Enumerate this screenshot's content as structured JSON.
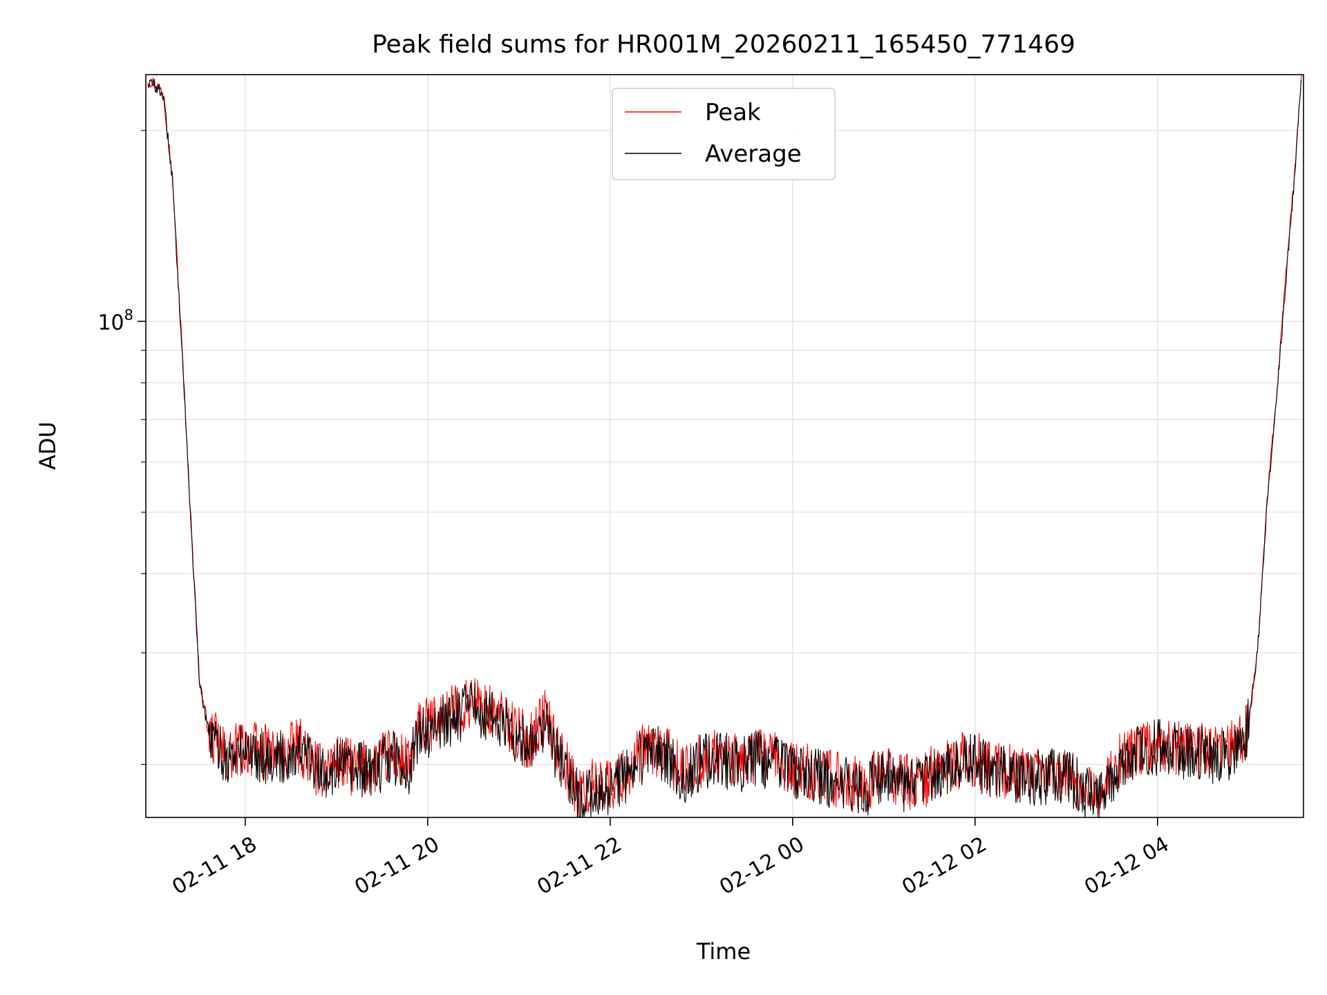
{
  "chart_data": {
    "type": "line",
    "title": "Peak field sums for HR001M_20260211_165450_771469",
    "xlabel": "Time",
    "ylabel": "ADU",
    "yscale": "log",
    "grid": true,
    "legend_position": "top-center",
    "xlim_hours": [
      16.91,
      29.6
    ],
    "ylim": [
      16500000.0,
      245000000.0
    ],
    "xticks": [
      {
        "hour": 18,
        "label": "02-11 18"
      },
      {
        "hour": 20,
        "label": "02-11 20"
      },
      {
        "hour": 22,
        "label": "02-11 22"
      },
      {
        "hour": 24,
        "label": "02-12 00"
      },
      {
        "hour": 26,
        "label": "02-12 02"
      },
      {
        "hour": 28,
        "label": "02-12 04"
      }
    ],
    "yticks": [
      {
        "value": 100000000,
        "base": "10",
        "exp": "8"
      }
    ],
    "yminor": [
      20000000,
      30000000,
      40000000,
      50000000,
      60000000,
      70000000,
      80000000,
      90000000,
      200000000
    ],
    "series": [
      {
        "name": "Peak",
        "color": "#ff0000",
        "x": [
          16.93,
          17.0,
          17.1,
          17.2,
          17.3,
          17.4,
          17.5,
          17.6,
          17.7,
          17.8,
          17.9,
          18.0,
          18.2,
          18.4,
          18.6,
          18.8,
          19.0,
          19.2,
          19.4,
          19.6,
          19.8,
          19.9,
          20.0,
          20.2,
          20.4,
          20.5,
          20.6,
          20.8,
          21.0,
          21.1,
          21.2,
          21.3,
          21.4,
          21.5,
          21.6,
          21.7,
          21.8,
          21.9,
          22.0,
          22.2,
          22.4,
          22.6,
          22.8,
          23.0,
          23.2,
          23.4,
          23.6,
          23.8,
          24.0,
          24.2,
          24.4,
          24.6,
          24.8,
          25.0,
          25.2,
          25.4,
          25.6,
          25.8,
          26.0,
          26.2,
          26.4,
          26.6,
          26.8,
          27.0,
          27.2,
          27.4,
          27.6,
          27.8,
          28.0,
          28.2,
          28.4,
          28.6,
          28.8,
          28.9,
          29.0,
          29.1,
          29.2,
          29.3,
          29.4,
          29.5,
          29.58
        ],
        "y": [
          240000000,
          238000000,
          230000000,
          170000000,
          95000000,
          50000000,
          27000000,
          22500000,
          21500000,
          20500000,
          21000000,
          21300000,
          20900000,
          20600000,
          21400000,
          19500000,
          20200000,
          19700000,
          19800000,
          20800000,
          19800000,
          22800000,
          23000000,
          23800000,
          24500000,
          25400000,
          24300000,
          23800000,
          22300000,
          21700000,
          22800000,
          24000000,
          21200000,
          20200000,
          18400000,
          17900000,
          18400000,
          18800000,
          18500000,
          19600000,
          21200000,
          20900000,
          19200000,
          20400000,
          20700000,
          20100000,
          20600000,
          20300000,
          19700000,
          19400000,
          19100000,
          18700000,
          18500000,
          19500000,
          18800000,
          18600000,
          19800000,
          20200000,
          20400000,
          19600000,
          19500000,
          19000000,
          19400000,
          19200000,
          18400000,
          18100000,
          20400000,
          21000000,
          21500000,
          21300000,
          21100000,
          20800000,
          21200000,
          21500000,
          23200000,
          31000000,
          52000000,
          75000000,
          115000000,
          170000000,
          245000000
        ]
      },
      {
        "name": "Average",
        "color": "#000000",
        "x": [
          16.93,
          17.0,
          17.1,
          17.2,
          17.3,
          17.4,
          17.5,
          17.6,
          17.7,
          17.8,
          17.9,
          18.0,
          18.2,
          18.4,
          18.6,
          18.8,
          19.0,
          19.2,
          19.4,
          19.6,
          19.8,
          19.9,
          20.0,
          20.2,
          20.4,
          20.5,
          20.6,
          20.8,
          21.0,
          21.1,
          21.2,
          21.3,
          21.4,
          21.5,
          21.6,
          21.7,
          21.8,
          21.9,
          22.0,
          22.2,
          22.4,
          22.6,
          22.8,
          23.0,
          23.2,
          23.4,
          23.6,
          23.8,
          24.0,
          24.2,
          24.4,
          24.6,
          24.8,
          25.0,
          25.2,
          25.4,
          25.6,
          25.8,
          26.0,
          26.2,
          26.4,
          26.6,
          26.8,
          27.0,
          27.2,
          27.4,
          27.6,
          27.8,
          28.0,
          28.2,
          28.4,
          28.6,
          28.8,
          28.9,
          29.0,
          29.1,
          29.2,
          29.3,
          29.4,
          29.5,
          29.58
        ],
        "y": [
          238000000,
          236000000,
          228000000,
          168000000,
          94000000,
          49500000,
          26700000,
          22300000,
          21300000,
          20300000,
          20800000,
          21100000,
          20700000,
          20400000,
          21200000,
          19300000,
          20000000,
          19500000,
          19600000,
          20600000,
          19600000,
          22500000,
          22700000,
          23500000,
          24200000,
          25000000,
          24000000,
          23500000,
          22000000,
          21400000,
          22500000,
          23600000,
          21000000,
          19900000,
          18000000,
          17600000,
          18000000,
          18300000,
          18200000,
          19400000,
          21000000,
          20700000,
          19000000,
          20200000,
          20500000,
          19900000,
          20400000,
          20100000,
          19500000,
          19200000,
          18900000,
          18500000,
          18300000,
          19300000,
          18600000,
          18400000,
          19600000,
          20000000,
          20200000,
          19400000,
          19300000,
          18800000,
          19200000,
          19000000,
          18200000,
          17900000,
          20200000,
          20800000,
          21300000,
          21100000,
          20900000,
          20600000,
          21000000,
          21300000,
          23000000,
          30700000,
          51500000,
          74000000,
          113000000,
          168000000,
          243000000
        ]
      }
    ]
  }
}
